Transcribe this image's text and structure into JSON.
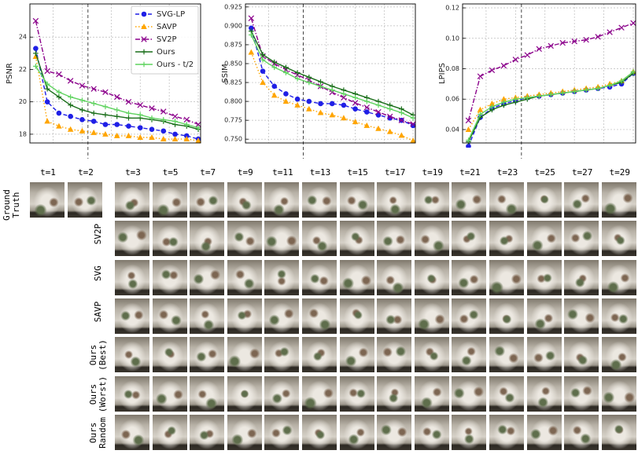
{
  "chart_data": [
    {
      "type": "line",
      "ylabel": "PSNR",
      "xlim": [
        1,
        30.4
      ],
      "ylim": [
        17.46,
        26.05
      ],
      "yticks": [
        18,
        20,
        22,
        24
      ],
      "grid": true,
      "xgrid": [
        5,
        10,
        15,
        20,
        25,
        30
      ],
      "vline": 11,
      "legend": "upper right",
      "x": [
        2,
        4,
        6,
        8,
        10,
        12,
        14,
        16,
        18,
        20,
        22,
        24,
        26,
        28,
        30
      ],
      "series": [
        {
          "name": "SVG-LP",
          "color": "#1f1fe6",
          "marker": "circle",
          "linestyle": "dashed",
          "values": [
            23.3,
            20.0,
            19.3,
            19.1,
            18.9,
            18.8,
            18.6,
            18.6,
            18.5,
            18.4,
            18.3,
            18.2,
            18.0,
            17.9,
            17.7
          ]
        },
        {
          "name": "SAVP",
          "color": "#ffa500",
          "marker": "triangle",
          "linestyle": "dotted",
          "values": [
            22.8,
            18.8,
            18.5,
            18.3,
            18.2,
            18.1,
            18.0,
            17.9,
            17.9,
            17.8,
            17.8,
            17.7,
            17.7,
            17.7,
            17.6
          ]
        },
        {
          "name": "SV2P",
          "color": "#8b008b",
          "marker": "x",
          "linestyle": "dashdot",
          "values": [
            25.0,
            21.9,
            21.7,
            21.3,
            21.0,
            20.8,
            20.6,
            20.3,
            20.0,
            19.8,
            19.6,
            19.4,
            19.1,
            18.9,
            18.6
          ]
        },
        {
          "name": "Ours",
          "color": "#1a6e1a",
          "marker": "plus",
          "linestyle": "solid",
          "values": [
            23.0,
            20.8,
            20.3,
            19.8,
            19.5,
            19.3,
            19.2,
            19.1,
            19.0,
            19.0,
            18.9,
            18.8,
            18.6,
            18.5,
            18.3
          ]
        },
        {
          "name": "Ours - t/2",
          "color": "#5fd35f",
          "marker": "plus",
          "linestyle": "solid",
          "values": [
            22.2,
            21.1,
            20.6,
            20.3,
            20.1,
            19.9,
            19.7,
            19.5,
            19.3,
            19.2,
            19.0,
            18.9,
            18.8,
            18.6,
            18.4
          ]
        }
      ]
    },
    {
      "type": "line",
      "ylabel": "SSIM",
      "xlim": [
        1,
        30.4
      ],
      "ylim": [
        0.745,
        0.929
      ],
      "yticks": [
        {
          "value": 0.75,
          "label": "0.750"
        },
        0.775,
        {
          "value": 0.8,
          "label": "0.800"
        },
        0.825,
        {
          "value": 0.85,
          "label": "0.850"
        },
        0.875,
        {
          "value": 0.9,
          "label": "0.900"
        },
        0.925
      ],
      "grid": true,
      "xgrid": [
        5,
        10,
        15,
        20,
        25,
        30
      ],
      "vline": 11,
      "legend": false,
      "x": [
        2,
        4,
        6,
        8,
        10,
        12,
        14,
        16,
        18,
        20,
        22,
        24,
        26,
        28,
        30
      ],
      "series": [
        {
          "name": "SVG-LP",
          "color": "#1f1fe6",
          "marker": "circle",
          "linestyle": "dashed",
          "values": [
            0.897,
            0.84,
            0.82,
            0.81,
            0.803,
            0.8,
            0.797,
            0.797,
            0.795,
            0.79,
            0.786,
            0.782,
            0.778,
            0.775,
            0.768
          ]
        },
        {
          "name": "SAVP",
          "color": "#ffa500",
          "marker": "triangle",
          "linestyle": "dotted",
          "values": [
            0.865,
            0.825,
            0.808,
            0.8,
            0.795,
            0.79,
            0.785,
            0.782,
            0.778,
            0.773,
            0.768,
            0.764,
            0.76,
            0.755,
            0.748
          ]
        },
        {
          "name": "SV2P",
          "color": "#8b008b",
          "marker": "x",
          "linestyle": "dashdot",
          "values": [
            0.91,
            0.86,
            0.85,
            0.842,
            0.835,
            0.828,
            0.82,
            0.812,
            0.805,
            0.798,
            0.792,
            0.786,
            0.78,
            0.775,
            0.77
          ]
        },
        {
          "name": "Ours",
          "color": "#1a6e1a",
          "marker": "plus",
          "linestyle": "solid",
          "values": [
            0.893,
            0.862,
            0.852,
            0.845,
            0.838,
            0.832,
            0.826,
            0.82,
            0.815,
            0.81,
            0.805,
            0.8,
            0.795,
            0.79,
            0.782
          ]
        },
        {
          "name": "Ours - t/2",
          "color": "#5fd35f",
          "marker": "plus",
          "linestyle": "solid",
          "values": [
            0.888,
            0.855,
            0.845,
            0.838,
            0.83,
            0.825,
            0.82,
            0.815,
            0.81,
            0.805,
            0.8,
            0.795,
            0.79,
            0.785,
            0.778
          ]
        }
      ]
    },
    {
      "type": "line",
      "ylabel": "LPIPS",
      "xlim": [
        1,
        30.4
      ],
      "ylim": [
        0.0312,
        0.1226
      ],
      "yticks": [
        0.04,
        0.06,
        0.08,
        {
          "value": 0.1,
          "label": "0.10"
        },
        0.12
      ],
      "grid": true,
      "xgrid": [
        5,
        10,
        15,
        20,
        25,
        30
      ],
      "vline": 11,
      "legend": false,
      "x": [
        2,
        4,
        6,
        8,
        10,
        12,
        14,
        16,
        18,
        20,
        22,
        24,
        26,
        28,
        30
      ],
      "series": [
        {
          "name": "SVG-LP",
          "color": "#1f1fe6",
          "marker": "circle",
          "linestyle": "dashed",
          "values": [
            0.029,
            0.048,
            0.054,
            0.057,
            0.059,
            0.061,
            0.062,
            0.063,
            0.064,
            0.065,
            0.066,
            0.067,
            0.068,
            0.07,
            0.077
          ]
        },
        {
          "name": "SAVP",
          "color": "#ffa500",
          "marker": "triangle",
          "linestyle": "dotted",
          "values": [
            0.04,
            0.053,
            0.057,
            0.06,
            0.061,
            0.062,
            0.063,
            0.064,
            0.065,
            0.066,
            0.067,
            0.068,
            0.07,
            0.072,
            0.078
          ]
        },
        {
          "name": "SV2P",
          "color": "#8b008b",
          "marker": "x",
          "linestyle": "dashdot",
          "values": [
            0.046,
            0.075,
            0.079,
            0.082,
            0.086,
            0.089,
            0.093,
            0.095,
            0.097,
            0.098,
            0.099,
            0.101,
            0.104,
            0.107,
            0.11
          ]
        },
        {
          "name": "Ours",
          "color": "#1a6e1a",
          "marker": "plus",
          "linestyle": "solid",
          "values": [
            0.032,
            0.048,
            0.053,
            0.056,
            0.058,
            0.06,
            0.062,
            0.063,
            0.064,
            0.065,
            0.066,
            0.067,
            0.069,
            0.071,
            0.077
          ]
        },
        {
          "name": "Ours - t/2",
          "color": "#5fd35f",
          "marker": "plus",
          "linestyle": "solid",
          "values": [
            0.033,
            0.05,
            0.055,
            0.058,
            0.06,
            0.061,
            0.062,
            0.063,
            0.064,
            0.065,
            0.066,
            0.067,
            0.069,
            0.072,
            0.078
          ]
        }
      ]
    }
  ],
  "image_grid": {
    "columns": [
      "t=1",
      "t=2",
      "t=3",
      "t=5",
      "t=7",
      "t=9",
      "t=11",
      "t=13",
      "t=15",
      "t=17",
      "t=19",
      "t=21",
      "t=23",
      "t=25",
      "t=27",
      "t=29"
    ],
    "rows": [
      "Ground Truth",
      "SV2P",
      "SVG",
      "SAVP",
      "Ours (Best)",
      "Ours (Worst)",
      "Ours Random"
    ]
  }
}
